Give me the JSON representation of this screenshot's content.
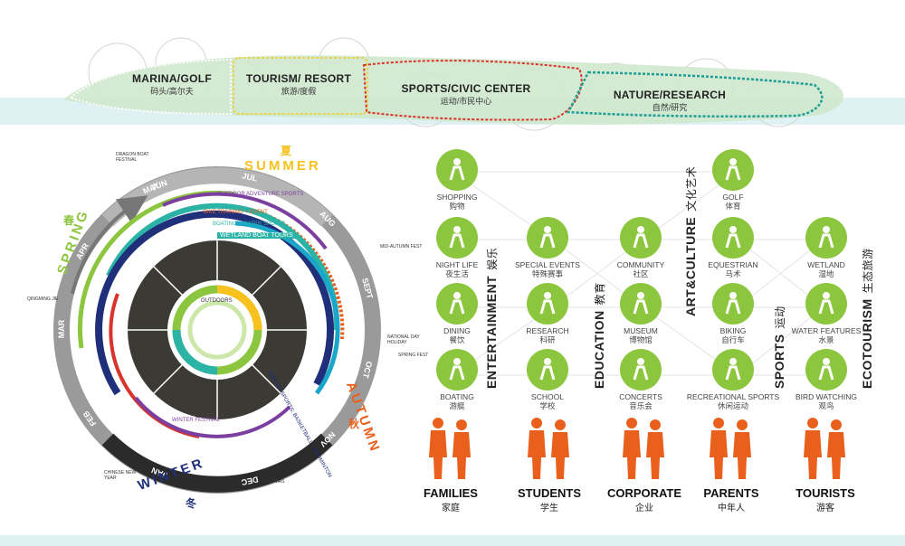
{
  "zones": [
    {
      "en": "MARINA/GOLF",
      "cn": "码头/高尔夫"
    },
    {
      "en": "TOURISM/ RESORT",
      "cn": "旅游/度假"
    },
    {
      "en": "SPORTS/CIVIC CENTER",
      "cn": "运动/市民中心"
    },
    {
      "en": "NATURE/RESEARCH",
      "cn": "自然/研究"
    }
  ],
  "seasons": {
    "summer": {
      "en": "SUMMER",
      "cn": "夏"
    },
    "autumn": {
      "en": "AUTUMN",
      "cn": "秋"
    },
    "winter": {
      "en": "WINTER",
      "cn": "冬"
    },
    "spring": {
      "en": "SPRING",
      "cn": "春"
    }
  },
  "months": [
    "JAN",
    "FEB",
    "MAR",
    "APR",
    "MAY",
    "JUN",
    "JUL",
    "AUG",
    "SEPT",
    "OCT",
    "NOV",
    "DEC"
  ],
  "programs": {
    "outdoor": "OUTDOOR ADVENTURE SPORTS",
    "bike": "BIKE TRAINING + EVENT",
    "boating": "BOATING + WATER SPORTS",
    "wetland": "WETLAND BOAT TOURS",
    "winter_fest": "WINTER FESTIVAL",
    "indoor": "INDOOR SPORTS: BASKETBALL + BADMINTON",
    "outdoors": "OUTDOORS"
  },
  "events": {
    "dragon": "DRAGON BOAT FESTIVAL",
    "mid_autumn": "MID-AUTUMN FEST",
    "national": "NATIONAL DAY HOLIDAY",
    "qingming": "QINGMING JIE",
    "spring_fest": "SPRING FEST",
    "christmas": "CHRISTMAS",
    "chinese_new_year": "CHINESE NEW YEAR"
  },
  "categories": [
    {
      "en": "ENTERTAINMENT",
      "cn": "娱乐"
    },
    {
      "en": "EDUCATION",
      "cn": "教育"
    },
    {
      "en": "ART&CULTURE",
      "cn": "文化艺术"
    },
    {
      "en": "SPORTS",
      "cn": "运动"
    },
    {
      "en": "ECOTOURISM",
      "cn": "生态旅游"
    }
  ],
  "activities": [
    {
      "en": "SHOPPING",
      "cn": "购物",
      "icon": "shopping-icon"
    },
    {
      "en": "GOLF",
      "cn": "体育",
      "icon": "golf-icon"
    },
    {
      "en": "NIGHT LIFE",
      "cn": "夜生活",
      "icon": "night-life-icon"
    },
    {
      "en": "SPECIAL EVENTS",
      "cn": "特殊赛事",
      "icon": "special-events-icon"
    },
    {
      "en": "COMMUNITY",
      "cn": "社区",
      "icon": "community-icon"
    },
    {
      "en": "EQUESTRIAN",
      "cn": "马术",
      "icon": "equestrian-icon"
    },
    {
      "en": "WETLAND",
      "cn": "湿地",
      "icon": "wetland-icon"
    },
    {
      "en": "DINING",
      "cn": "餐饮",
      "icon": "dining-icon"
    },
    {
      "en": "RESEARCH",
      "cn": "科研",
      "icon": "research-icon"
    },
    {
      "en": "MUSEUM",
      "cn": "博物馆",
      "icon": "museum-icon"
    },
    {
      "en": "BIKING",
      "cn": "自行车",
      "icon": "biking-icon"
    },
    {
      "en": "WATER FEATURES",
      "cn": "水景",
      "icon": "water-features-icon"
    },
    {
      "en": "BOATING",
      "cn": "游艇",
      "icon": "boating-icon"
    },
    {
      "en": "SCHOOL",
      "cn": "学校",
      "icon": "school-icon"
    },
    {
      "en": "CONCERTS",
      "cn": "音乐会",
      "icon": "concerts-icon"
    },
    {
      "en": "RECREATIONAL SPORTS",
      "cn": "休闲运动",
      "icon": "recreational-sports-icon"
    },
    {
      "en": "BIRD WATCHING",
      "cn": "观鸟",
      "icon": "bird-watching-icon"
    }
  ],
  "groups": [
    {
      "en": "FAMILIES",
      "cn": "家庭"
    },
    {
      "en": "STUDENTS",
      "cn": "学生"
    },
    {
      "en": "CORPORATE",
      "cn": "企业"
    },
    {
      "en": "PARENTS",
      "cn": "中年人"
    },
    {
      "en": "TOURISTS",
      "cn": "游客"
    }
  ],
  "colors": {
    "green": "#8cc63f",
    "orange": "#e8601c",
    "grey": "#888888",
    "navy": "#1f2f7a",
    "teal": "#2bb3a6",
    "purple": "#7b3fa0",
    "yellow": "#f7c21d"
  }
}
